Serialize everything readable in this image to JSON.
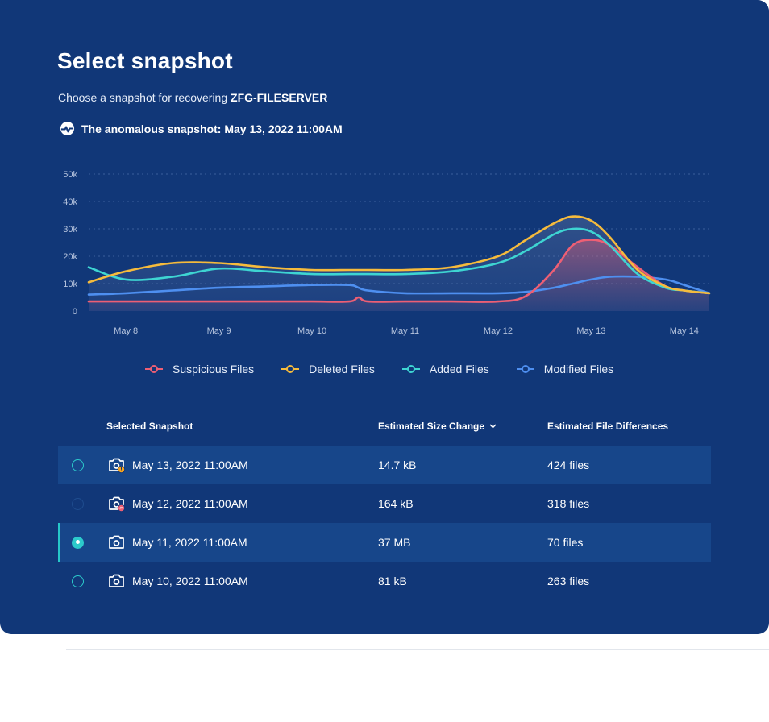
{
  "header": {
    "title": "Select snapshot",
    "subtitle_prefix": "Choose a snapshot for recovering ",
    "server_name": "ZFG-FILESERVER",
    "anomaly_text": "The anomalous snapshot: May 13, 2022 11:00AM"
  },
  "chart_data": {
    "type": "area",
    "y_ticks": [
      "0",
      "10k",
      "20k",
      "30k",
      "40k",
      "50k"
    ],
    "ylim": [
      0,
      50000
    ],
    "x_ticks": [
      "May 8",
      "May 9",
      "May 10",
      "May 11",
      "May 12",
      "May 13",
      "May 14"
    ],
    "x": [
      7.6,
      8.0,
      8.5,
      9.0,
      9.5,
      10.0,
      10.4,
      10.5,
      10.6,
      11.0,
      11.5,
      12.0,
      12.3,
      12.6,
      12.8,
      13.0,
      13.2,
      13.5,
      13.8,
      14.0,
      14.27
    ],
    "series": [
      {
        "name": "Suspicious Files",
        "color": "#ee5f74",
        "values": [
          3500,
          3500,
          3500,
          3500,
          3500,
          3500,
          3500,
          5000,
          3500,
          3500,
          3500,
          3500,
          5500,
          15000,
          24000,
          26000,
          24000,
          16000,
          9000,
          7500,
          6500
        ]
      },
      {
        "name": "Deleted Files",
        "color": "#f6bb3c",
        "values": [
          10500,
          14500,
          17500,
          17500,
          16000,
          15000,
          15000,
          15000,
          15000,
          15000,
          16000,
          20000,
          26000,
          32000,
          34500,
          33000,
          27000,
          15000,
          9000,
          7500,
          6500
        ]
      },
      {
        "name": "Added Files",
        "color": "#3ed5d2",
        "values": [
          16000,
          11500,
          12500,
          15500,
          14500,
          13500,
          13500,
          13500,
          13500,
          13500,
          14500,
          17500,
          22000,
          28000,
          30000,
          29000,
          24000,
          13500,
          8500,
          7500,
          6500
        ]
      },
      {
        "name": "Modified Files",
        "color": "#4e8ff0",
        "values": [
          6000,
          6500,
          7500,
          8500,
          9000,
          9500,
          9500,
          8500,
          7500,
          6500,
          6500,
          6500,
          7000,
          8500,
          10000,
          11500,
          12500,
          12500,
          11500,
          9500,
          6500
        ]
      }
    ]
  },
  "table": {
    "headers": {
      "snapshot": "Selected Snapshot",
      "size": "Estimated Size Change",
      "files": "Estimated File Differences"
    },
    "rows": [
      {
        "date": "May 13, 2022 11:00AM",
        "size": "14.7 kB",
        "files": "424 files"
      },
      {
        "date": "May 12, 2022 11:00AM",
        "size": "164 kB",
        "files": "318 files"
      },
      {
        "date": "May 11, 2022 11:00AM",
        "size": "37 MB",
        "files": "70 files"
      },
      {
        "date": "May 10, 2022 11:00AM",
        "size": "81 kB",
        "files": "263 files"
      }
    ]
  },
  "colors": {
    "panel": "#113778",
    "row_highlight": "#17468a",
    "accent": "#2ccacb",
    "warning_badge": "#f6a21c",
    "danger_badge": "#ee5f74"
  }
}
